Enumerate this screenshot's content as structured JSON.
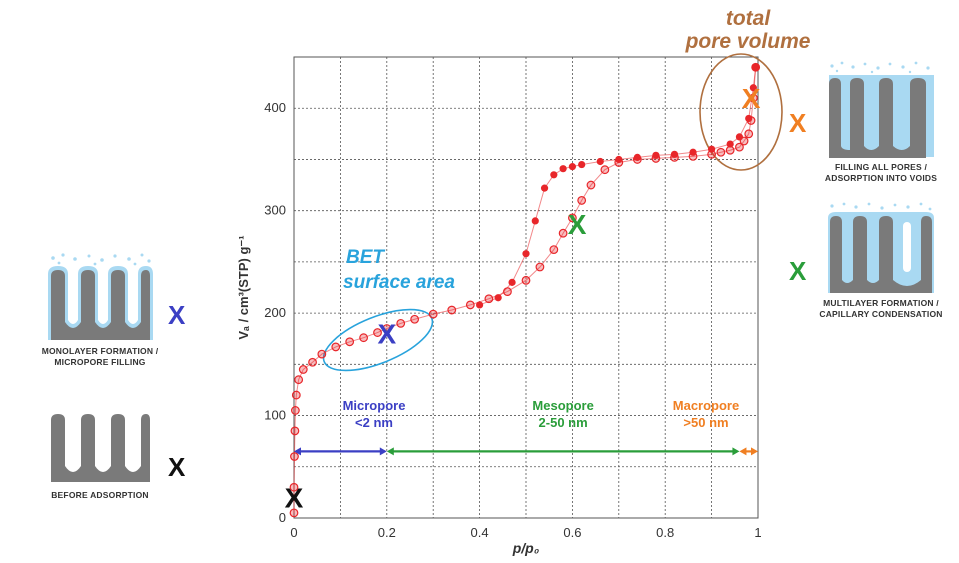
{
  "chart_data": {
    "type": "scatter",
    "xlabel": "p/p₀",
    "ylabel": "Vₐ / cm³(STP) g⁻¹",
    "xlim": [
      0,
      1
    ],
    "ylim": [
      0,
      450
    ],
    "x_ticks": [
      0,
      0.2,
      0.4,
      0.6,
      0.8,
      1
    ],
    "x_tick_labels": [
      "0",
      "0.2",
      "0.4",
      "0.6",
      "0.8",
      "1"
    ],
    "y_ticks": [
      0,
      100,
      200,
      300,
      400
    ],
    "y_tick_labels": [
      "0",
      "100",
      "200",
      "300",
      "400"
    ],
    "grid": true,
    "series": [
      {
        "role": "adsorption",
        "color": "#e8262a",
        "marker": "open-circle",
        "x": [
          0.0,
          0.0,
          0.001,
          0.002,
          0.003,
          0.005,
          0.01,
          0.02,
          0.04,
          0.06,
          0.09,
          0.12,
          0.15,
          0.18,
          0.2,
          0.23,
          0.26,
          0.3,
          0.34,
          0.38,
          0.42,
          0.46,
          0.5,
          0.53,
          0.56,
          0.58,
          0.6,
          0.62,
          0.64,
          0.67,
          0.7,
          0.74,
          0.78,
          0.82,
          0.86,
          0.9,
          0.92,
          0.94,
          0.96,
          0.97,
          0.98,
          0.985,
          0.99,
          0.995
        ],
        "y": [
          5,
          30,
          60,
          85,
          105,
          120,
          135,
          145,
          152,
          160,
          167,
          172,
          176,
          181,
          185,
          190,
          194,
          199,
          203,
          208,
          214,
          221,
          232,
          245,
          262,
          278,
          293,
          310,
          325,
          340,
          347,
          350,
          351,
          352,
          353,
          355,
          357,
          359,
          362,
          368,
          375,
          388,
          410,
          440
        ]
      },
      {
        "role": "desorption",
        "color": "#e8262a",
        "marker": "filled-circle",
        "x": [
          0.995,
          0.99,
          0.98,
          0.96,
          0.94,
          0.9,
          0.86,
          0.82,
          0.78,
          0.74,
          0.7,
          0.66,
          0.62,
          0.6,
          0.58,
          0.56,
          0.54,
          0.52,
          0.5,
          0.47,
          0.44,
          0.4
        ],
        "y": [
          440,
          420,
          390,
          372,
          365,
          360,
          357,
          355,
          354,
          352,
          350,
          348,
          345,
          343,
          341,
          335,
          322,
          290,
          258,
          230,
          215,
          208
        ]
      }
    ],
    "annotations": {
      "top": {
        "line1": "total",
        "line2": "pore volume"
      },
      "bet": {
        "line1": "BET",
        "line2": "surface area"
      },
      "x_marks": [
        {
          "x": 0.0,
          "y": 20,
          "color": "#111111"
        },
        {
          "x": 0.2,
          "y": 180,
          "color": "#3b3fc4"
        },
        {
          "x": 0.61,
          "y": 287,
          "color": "#2a9d3a"
        },
        {
          "x": 0.985,
          "y": 410,
          "color": "#f07f22"
        }
      ],
      "ranges": [
        {
          "line1": "Micropore",
          "line2": "<2 nm",
          "from": 0.0,
          "to": 0.2,
          "color": "#3b3fc4"
        },
        {
          "line1": "Mesopore",
          "line2": "2-50 nm",
          "from": 0.2,
          "to": 0.96,
          "color": "#2a9d3a"
        },
        {
          "line1": "Macropore",
          "line2": ">50 nm",
          "from": 0.96,
          "to": 1.0,
          "color": "#f07f22"
        }
      ]
    }
  },
  "panels": {
    "mark_glyph": "X",
    "before": {
      "caption1": "BEFORE ADSORPTION",
      "caption2": "",
      "color": "#111111"
    },
    "monolayer": {
      "caption1": "MONOLAYER FORMATION /",
      "caption2": "MICROPORE FILLING",
      "color": "#3b3fc4"
    },
    "multilayer": {
      "caption1": "MULTILAYER FORMATION /",
      "caption2": "CAPILLARY CONDENSATION",
      "color": "#2a9d3a"
    },
    "filling": {
      "caption1": "FILLING ALL PORES /",
      "caption2": "ADSORPTION INTO VOIDS",
      "color": "#f07f22"
    }
  },
  "colors": {
    "grid": "#555555",
    "title": "#b0703f",
    "bet": "#29a3dc",
    "solid": "#7a7a7a",
    "fluid": "#a9d9f2"
  }
}
